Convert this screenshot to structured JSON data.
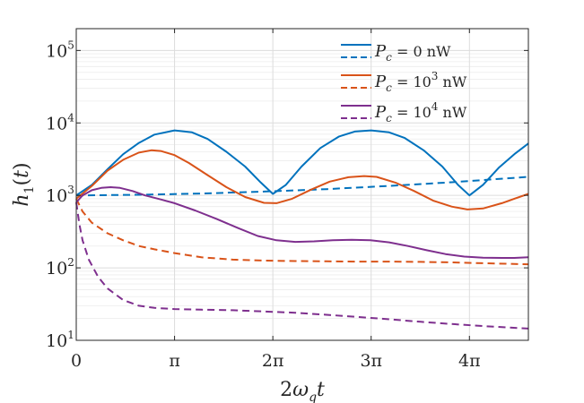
{
  "chart_data": {
    "type": "line",
    "xlabel": "2ω_q t",
    "ylabel": "h_1(t)",
    "yscale": "log",
    "xlim": [
      0,
      14.45
    ],
    "ylim": [
      10,
      200000
    ],
    "xticks": [
      {
        "value": 0,
        "label": "0"
      },
      {
        "value": 3.1416,
        "label": "π"
      },
      {
        "value": 6.2832,
        "label": "2π"
      },
      {
        "value": 9.4248,
        "label": "3π"
      },
      {
        "value": 12.566,
        "label": "4π"
      }
    ],
    "yticks": [
      {
        "value": 10,
        "base": "10",
        "exp": "1"
      },
      {
        "value": 100,
        "base": "10",
        "exp": "2"
      },
      {
        "value": 1000,
        "base": "10",
        "exp": "3"
      },
      {
        "value": 10000,
        "base": "10",
        "exp": "4"
      },
      {
        "value": 100000,
        "base": "10",
        "exp": "5"
      }
    ],
    "grid": true,
    "legend_position": "top-right",
    "series": [
      {
        "name": "P_c = 0 nW",
        "label_var": "P",
        "label_sub": "c",
        "label_rest": " = 0 nW",
        "color": "#0072BD",
        "dash": "solid",
        "x": [
          0,
          0.5,
          1.0,
          1.5,
          2.0,
          2.5,
          3.1416,
          3.7,
          4.2,
          4.8,
          5.4,
          5.9,
          6.2832,
          6.7,
          7.2,
          7.8,
          8.4,
          8.9,
          9.4248,
          10.0,
          10.5,
          11.1,
          11.7,
          12.2,
          12.566,
          13.0,
          13.5,
          14.0,
          14.45
        ],
        "y": [
          1000,
          1400,
          2300,
          3700,
          5300,
          6900,
          7900,
          7400,
          6000,
          4000,
          2500,
          1500,
          1050,
          1400,
          2500,
          4500,
          6500,
          7600,
          7900,
          7400,
          6200,
          4200,
          2500,
          1400,
          1000,
          1400,
          2400,
          3700,
          5200
        ]
      },
      {
        "name": "P_c = 0 nW (dashed)",
        "color": "#0072BD",
        "dash": "dashed",
        "x": [
          0,
          2,
          4,
          6,
          8,
          10,
          12,
          14.45
        ],
        "y": [
          1000,
          1020,
          1060,
          1130,
          1220,
          1350,
          1520,
          1800
        ]
      },
      {
        "name": "P_c = 10^3 nW",
        "label_var": "P",
        "label_sub": "c",
        "label_rest": " = 10",
        "label_sup": "3",
        "label_tail": " nW",
        "color": "#D95319",
        "dash": "solid",
        "x": [
          0,
          0.5,
          1.0,
          1.5,
          2.0,
          2.4,
          2.7,
          3.1416,
          3.6,
          4.2,
          4.8,
          5.4,
          6.0,
          6.4,
          6.9,
          7.5,
          8.1,
          8.7,
          9.2,
          9.6,
          10.2,
          10.8,
          11.4,
          12.0,
          12.5,
          13.0,
          13.6,
          14.0,
          14.45
        ],
        "y": [
          900,
          1350,
          2200,
          3100,
          3900,
          4200,
          4100,
          3600,
          2800,
          1900,
          1300,
          950,
          790,
          780,
          900,
          1200,
          1550,
          1780,
          1850,
          1800,
          1500,
          1150,
          850,
          700,
          640,
          660,
          780,
          900,
          1050
        ]
      },
      {
        "name": "P_c = 10^3 nW (dashed)",
        "color": "#D95319",
        "dash": "dashed",
        "x": [
          0,
          0.2,
          0.5,
          1.0,
          1.5,
          2.0,
          2.5,
          3.1416,
          4.0,
          5.0,
          6.0,
          7.0,
          8.0,
          9.0,
          10.0,
          11.0,
          12.0,
          13.0,
          14.45
        ],
        "y": [
          900,
          600,
          420,
          300,
          240,
          200,
          180,
          160,
          140,
          130,
          126,
          124,
          123,
          122,
          122,
          121,
          119,
          116,
          112
        ]
      },
      {
        "name": "P_c = 10^4 nW",
        "label_var": "P",
        "label_sub": "c",
        "label_rest": " = 10",
        "label_sup": "4",
        "label_tail": " nW",
        "color": "#7E2F8E",
        "dash": "solid",
        "x": [
          0,
          0.2,
          0.5,
          0.8,
          1.1,
          1.4,
          1.8,
          2.2,
          2.7,
          3.1416,
          3.8,
          4.5,
          5.2,
          5.8,
          6.4,
          7.0,
          7.6,
          8.2,
          8.8,
          9.4,
          10.0,
          10.6,
          11.2,
          11.8,
          12.4,
          13.0,
          13.6,
          14.0,
          14.45
        ],
        "y": [
          800,
          1000,
          1180,
          1270,
          1300,
          1270,
          1150,
          1000,
          880,
          780,
          620,
          470,
          350,
          275,
          240,
          228,
          232,
          240,
          244,
          240,
          225,
          200,
          175,
          155,
          143,
          138,
          137,
          137,
          140
        ]
      },
      {
        "name": "P_c = 10^4 nW (dashed)",
        "color": "#7E2F8E",
        "dash": "dashed",
        "x": [
          0,
          0.1,
          0.2,
          0.4,
          0.7,
          1.0,
          1.5,
          2.0,
          2.5,
          3.1416,
          4.0,
          5.0,
          6.0,
          7.0,
          8.0,
          9.0,
          10.0,
          11.0,
          12.0,
          13.0,
          14.45
        ],
        "y": [
          800,
          400,
          240,
          130,
          75,
          52,
          36,
          30,
          28,
          27,
          26.5,
          26,
          25,
          24,
          22.5,
          21,
          19.5,
          18,
          16.8,
          15.7,
          14.5
        ]
      }
    ]
  }
}
